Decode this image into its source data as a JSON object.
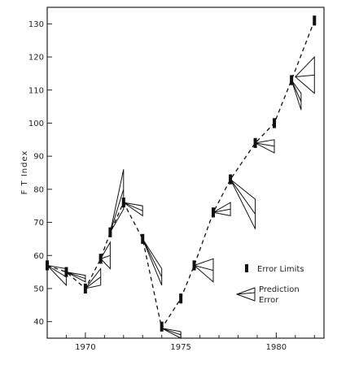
{
  "chart_data": {
    "type": "line",
    "ylabel": "F T  Index",
    "xlabel": "",
    "title": "",
    "xlim": [
      1968,
      1982.5
    ],
    "ylim": [
      35,
      135
    ],
    "yticks": [
      40,
      50,
      60,
      70,
      80,
      90,
      100,
      110,
      120,
      130
    ],
    "xticks": [
      1970,
      1975,
      1980
    ],
    "grid": false,
    "legend_position": "right-middle",
    "legend": {
      "error_limits": "Error Limits",
      "prediction_error_line1": "Prediction",
      "prediction_error_line2": "Error"
    },
    "series": [
      {
        "values": [
          {
            "x": 1968.0,
            "y": 57
          },
          {
            "x": 1969.0,
            "y": 55
          },
          {
            "x": 1970.0,
            "y": 50
          },
          {
            "x": 1970.8,
            "y": 59
          },
          {
            "x": 1971.3,
            "y": 67
          },
          {
            "x": 1972.0,
            "y": 76
          },
          {
            "x": 1973.0,
            "y": 65
          },
          {
            "x": 1974.0,
            "y": 38
          },
          {
            "x": 1975.0,
            "y": 47
          },
          {
            "x": 1975.7,
            "y": 57
          },
          {
            "x": 1976.7,
            "y": 73
          },
          {
            "x": 1977.6,
            "y": 83
          },
          {
            "x": 1978.9,
            "y": 94
          },
          {
            "x": 1979.9,
            "y": 100
          },
          {
            "x": 1980.8,
            "y": 113
          },
          {
            "x": 1982.0,
            "y": 131
          }
        ]
      }
    ],
    "prediction_errors": [
      {
        "x": 1968.0,
        "y": 57,
        "y_upper": 56,
        "y_lower": 51,
        "x_end": 1969.0
      },
      {
        "x": 1969.0,
        "y": 55,
        "y_upper": 54,
        "y_lower": 52,
        "x_end": 1970.0
      },
      {
        "x": 1970.0,
        "y": 50,
        "y_upper": 56,
        "y_lower": 51,
        "x_end": 1970.8
      },
      {
        "x": 1970.8,
        "y": 59,
        "y_upper": 64,
        "y_lower": 56,
        "x_end": 1971.3
      },
      {
        "x": 1971.3,
        "y": 67,
        "y_upper": 86,
        "y_lower": 74,
        "x_end": 1972.0
      },
      {
        "x": 1972.0,
        "y": 76,
        "y_upper": 75,
        "y_lower": 72,
        "x_end": 1973.0
      },
      {
        "x": 1973.0,
        "y": 65,
        "y_upper": 56,
        "y_lower": 51,
        "x_end": 1974.0
      },
      {
        "x": 1974.0,
        "y": 38,
        "y_upper": 37,
        "y_lower": 35,
        "x_end": 1975.0
      },
      {
        "x": 1975.7,
        "y": 57,
        "y_upper": 59,
        "y_lower": 52,
        "x_end": 1976.7
      },
      {
        "x": 1976.7,
        "y": 73,
        "y_upper": 76,
        "y_lower": 72,
        "x_end": 1977.6
      },
      {
        "x": 1977.6,
        "y": 83,
        "y_upper": 77,
        "y_lower": 68,
        "x_end": 1978.9
      },
      {
        "x": 1978.9,
        "y": 94,
        "y_upper": 95,
        "y_lower": 91,
        "x_end": 1979.9
      },
      {
        "x": 1980.8,
        "y": 113,
        "y_upper": 109,
        "y_lower": 104,
        "x_end": 1981.3
      },
      {
        "x": 1981.0,
        "y": 114,
        "y_upper": 120,
        "y_lower": 109,
        "x_end": 1982.0
      }
    ],
    "error_limits": [
      {
        "x": 1968.0,
        "y_low": 55.5,
        "y_high": 58.5
      },
      {
        "x": 1969.0,
        "y_low": 53.5,
        "y_high": 56.5
      },
      {
        "x": 1970.0,
        "y_low": 48.5,
        "y_high": 51.5
      },
      {
        "x": 1970.8,
        "y_low": 57.5,
        "y_high": 60.5
      },
      {
        "x": 1971.3,
        "y_low": 65.5,
        "y_high": 68.5
      },
      {
        "x": 1972.0,
        "y_low": 74.5,
        "y_high": 77.5
      },
      {
        "x": 1973.0,
        "y_low": 63.5,
        "y_high": 66.5
      },
      {
        "x": 1974.0,
        "y_low": 37,
        "y_high": 40
      },
      {
        "x": 1975.0,
        "y_low": 45.5,
        "y_high": 48.5
      },
      {
        "x": 1975.7,
        "y_low": 55.5,
        "y_high": 58.5
      },
      {
        "x": 1976.7,
        "y_low": 71.5,
        "y_high": 74.5
      },
      {
        "x": 1977.6,
        "y_low": 81.5,
        "y_high": 84.5
      },
      {
        "x": 1978.9,
        "y_low": 92.5,
        "y_high": 95.5
      },
      {
        "x": 1979.9,
        "y_low": 98.5,
        "y_high": 101.5
      },
      {
        "x": 1980.8,
        "y_low": 111.5,
        "y_high": 114.5
      },
      {
        "x": 1982.0,
        "y_low": 129.5,
        "y_high": 132.5
      }
    ]
  }
}
